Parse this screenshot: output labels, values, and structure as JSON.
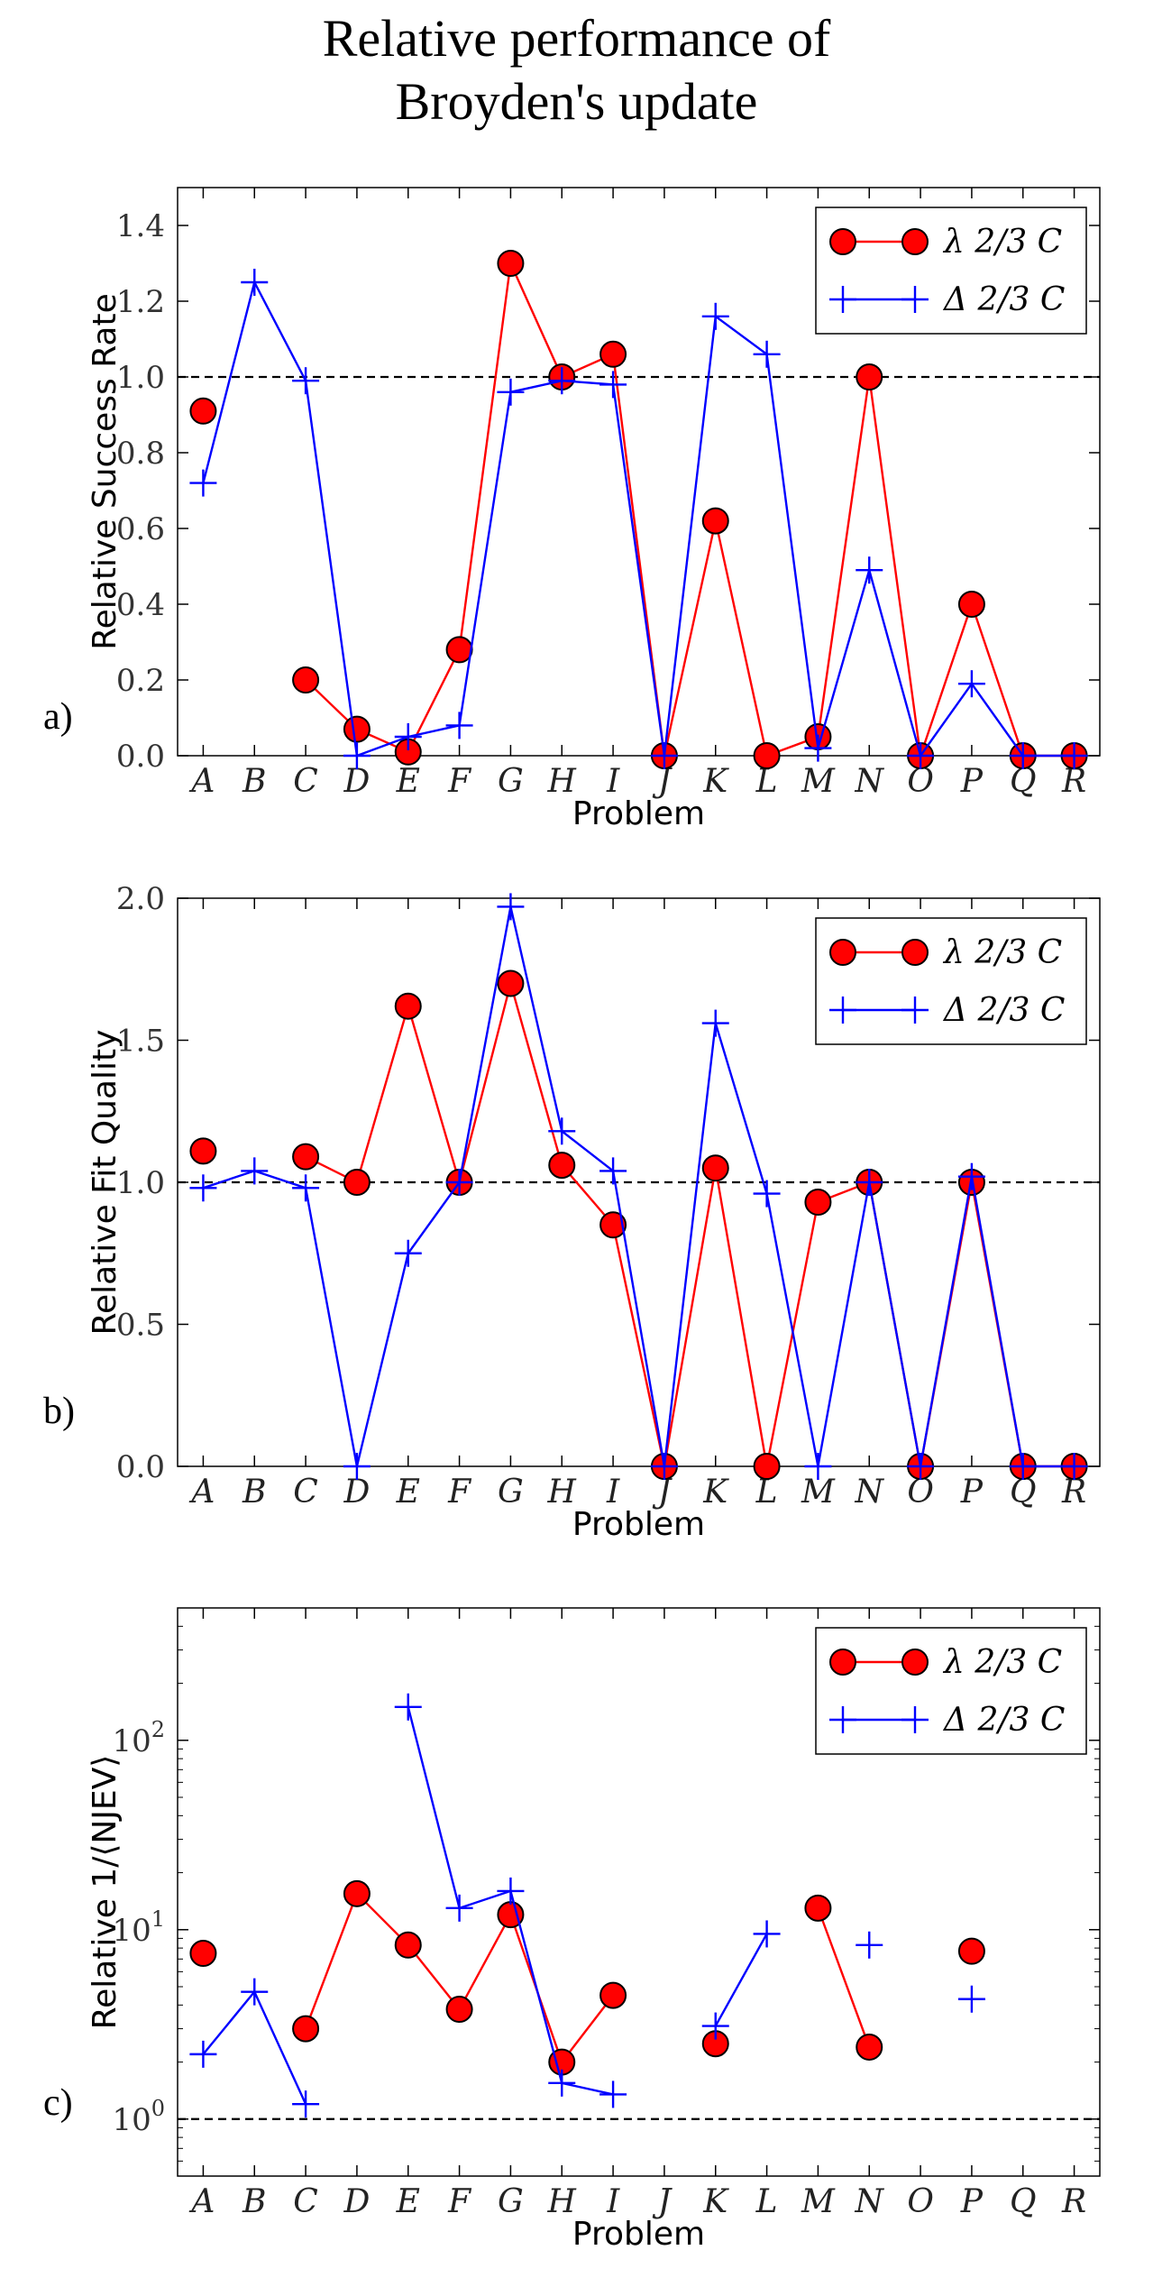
{
  "title": {
    "line1": "Relative performance of",
    "line2": "Broyden's update"
  },
  "chart_data": [
    {
      "type": "line",
      "panel_label": "a)",
      "title": "",
      "xlabel": "Problem",
      "ylabel": "Relative Success Rate",
      "yscale": "linear",
      "ylim": [
        0,
        1.5
      ],
      "yticks": [
        0.0,
        0.2,
        0.4,
        0.6,
        0.8,
        1.0,
        1.2,
        1.4
      ],
      "ytick_labels": [
        "0.0",
        "0.2",
        "0.4",
        "0.6",
        "0.8",
        "1.0",
        "1.2",
        "1.4"
      ],
      "reference_line": 1.0,
      "legend_position": "top-right",
      "categories": [
        "A",
        "B",
        "C",
        "D",
        "E",
        "F",
        "G",
        "H",
        "I",
        "J",
        "K",
        "L",
        "M",
        "N",
        "O",
        "P",
        "Q",
        "R"
      ],
      "series": [
        {
          "name": "λ 2/3 C",
          "color": "#ff0000",
          "marker": "circle",
          "values": [
            0.91,
            null,
            0.2,
            0.07,
            0.01,
            0.28,
            1.3,
            1.0,
            1.06,
            0.0,
            0.62,
            0.0,
            0.05,
            1.0,
            0.0,
            0.4,
            0.0,
            0.0
          ]
        },
        {
          "name": "Δ 2/3 C",
          "color": "#0000ff",
          "marker": "plus",
          "values": [
            0.72,
            1.25,
            0.99,
            0.0,
            0.05,
            0.08,
            0.96,
            0.99,
            0.98,
            0.0,
            1.16,
            1.06,
            0.02,
            0.49,
            0.0,
            0.19,
            0.0,
            0.0
          ]
        }
      ]
    },
    {
      "type": "line",
      "panel_label": "b)",
      "title": "",
      "xlabel": "Problem",
      "ylabel": "Relative Fit Quality",
      "yscale": "linear",
      "ylim": [
        0,
        2.0
      ],
      "yticks": [
        0.0,
        0.5,
        1.0,
        1.5,
        2.0
      ],
      "ytick_labels": [
        "0.0",
        "0.5",
        "1.0",
        "1.5",
        "2.0"
      ],
      "reference_line": 1.0,
      "legend_position": "top-right",
      "categories": [
        "A",
        "B",
        "C",
        "D",
        "E",
        "F",
        "G",
        "H",
        "I",
        "J",
        "K",
        "L",
        "M",
        "N",
        "O",
        "P",
        "Q",
        "R"
      ],
      "series": [
        {
          "name": "λ 2/3 C",
          "color": "#ff0000",
          "marker": "circle",
          "values": [
            1.11,
            null,
            1.09,
            1.0,
            1.62,
            1.0,
            1.7,
            1.06,
            0.85,
            0.0,
            1.05,
            0.0,
            0.93,
            1.0,
            0.0,
            1.0,
            0.0,
            0.0
          ]
        },
        {
          "name": "Δ 2/3 C",
          "color": "#0000ff",
          "marker": "plus",
          "values": [
            0.98,
            1.04,
            0.98,
            0.0,
            0.75,
            1.0,
            1.97,
            1.18,
            1.04,
            0.0,
            1.56,
            0.96,
            0.0,
            1.0,
            0.0,
            1.02,
            0.0,
            0.0
          ]
        }
      ]
    },
    {
      "type": "line",
      "panel_label": "c)",
      "title": "",
      "xlabel": "Problem",
      "ylabel": "Relative 1/⟨NJEV⟩",
      "yscale": "log",
      "ylim": [
        0.5,
        500
      ],
      "yticks": [
        1,
        10,
        100
      ],
      "ytick_labels": [
        [
          "10",
          "0"
        ],
        [
          "10",
          "1"
        ],
        [
          "10",
          "2"
        ]
      ],
      "reference_line": 1.0,
      "legend_position": "top-right",
      "categories": [
        "A",
        "B",
        "C",
        "D",
        "E",
        "F",
        "G",
        "H",
        "I",
        "J",
        "K",
        "L",
        "M",
        "N",
        "O",
        "P",
        "Q",
        "R"
      ],
      "series": [
        {
          "name": "λ 2/3 C",
          "color": "#ff0000",
          "marker": "circle",
          "values": [
            7.5,
            null,
            3.0,
            15.5,
            8.3,
            3.8,
            12.0,
            2.0,
            4.5,
            null,
            2.5,
            null,
            13.0,
            2.4,
            null,
            7.7,
            null,
            null
          ]
        },
        {
          "name": "Δ 2/3 C",
          "color": "#0000ff",
          "marker": "plus",
          "values": [
            2.2,
            4.7,
            1.2,
            null,
            150,
            13.0,
            16.0,
            1.55,
            1.35,
            null,
            3.1,
            9.5,
            null,
            8.3,
            null,
            4.3,
            null,
            null
          ]
        }
      ]
    }
  ]
}
